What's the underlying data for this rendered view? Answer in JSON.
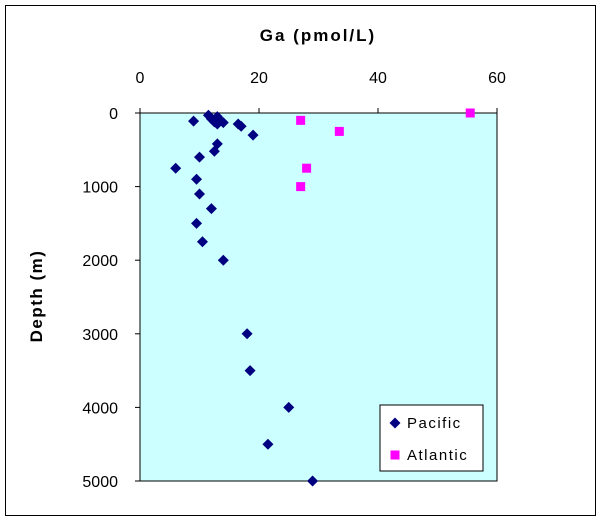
{
  "chart_data": {
    "type": "scatter",
    "title": "",
    "xlabel": "Ga (pmol/L)",
    "ylabel": "Depth (m)",
    "xlim": [
      0,
      60
    ],
    "ylim": [
      0,
      5000
    ],
    "y_inverted": true,
    "x_axis_position": "top",
    "x_ticks": [
      "0",
      "20",
      "40",
      "60"
    ],
    "y_ticks": [
      "0",
      "1000",
      "2000",
      "3000",
      "4000",
      "5000"
    ],
    "grid": false,
    "plot_background": "#ccffff",
    "legend_position": "bottom-right",
    "series": [
      {
        "name": "Pacific",
        "marker": "diamond",
        "color": "#000080",
        "points": [
          [
            11.5,
            30
          ],
          [
            13,
            50
          ],
          [
            12,
            80
          ],
          [
            13.5,
            100
          ],
          [
            9,
            110
          ],
          [
            12.5,
            120
          ],
          [
            14,
            130
          ],
          [
            13,
            150
          ],
          [
            16.5,
            150
          ],
          [
            17,
            180
          ],
          [
            19,
            300
          ],
          [
            13,
            420
          ],
          [
            12.5,
            520
          ],
          [
            10,
            600
          ],
          [
            6,
            750
          ],
          [
            9.5,
            900
          ],
          [
            10,
            1100
          ],
          [
            12,
            1300
          ],
          [
            9.5,
            1500
          ],
          [
            10.5,
            1750
          ],
          [
            14,
            2000
          ],
          [
            18,
            3000
          ],
          [
            18.5,
            3500
          ],
          [
            25,
            4000
          ],
          [
            21.5,
            4500
          ],
          [
            29,
            5000
          ]
        ]
      },
      {
        "name": "Atlantic",
        "marker": "square",
        "color": "#ff00ff",
        "points": [
          [
            55.5,
            0
          ],
          [
            27,
            100
          ],
          [
            33.5,
            250
          ],
          [
            28,
            750
          ],
          [
            27,
            1000
          ]
        ]
      }
    ]
  }
}
